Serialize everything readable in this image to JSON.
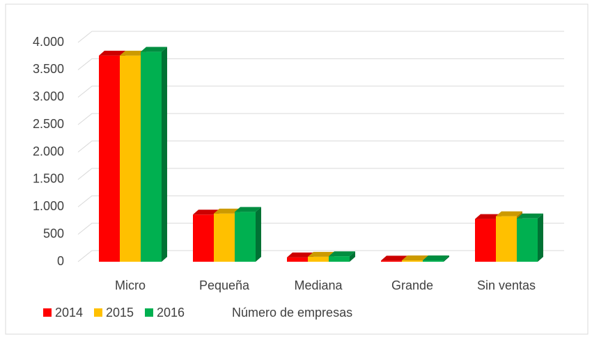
{
  "chart_data": {
    "type": "bar3d",
    "x_label": "Número de empresas",
    "categories": [
      "Micro",
      "Pequeña",
      "Mediana",
      "Grande",
      "Sin ventas"
    ],
    "series": [
      {
        "name": "2014",
        "color": "#ff0000",
        "values": [
          3760,
          860,
          80,
          20,
          780
        ]
      },
      {
        "name": "2015",
        "color": "#ffc000",
        "values": [
          3760,
          880,
          90,
          25,
          830
        ]
      },
      {
        "name": "2016",
        "color": "#00b050",
        "values": [
          3830,
          910,
          100,
          25,
          790
        ]
      }
    ],
    "ylim": [
      0,
      4000
    ],
    "yticks": [
      0,
      500,
      {
        "value": 1000,
        "label": "1.000"
      },
      {
        "value": 1500,
        "label": "1.500"
      },
      {
        "value": 2000,
        "label": "2.000"
      },
      {
        "value": 2500,
        "label": "2.500"
      },
      {
        "value": 3000,
        "label": "3.000"
      },
      {
        "value": 3500,
        "label": "3.500"
      },
      {
        "value": 4000,
        "label": "4.000"
      }
    ],
    "grid": true,
    "legend": "bottom-left"
  }
}
